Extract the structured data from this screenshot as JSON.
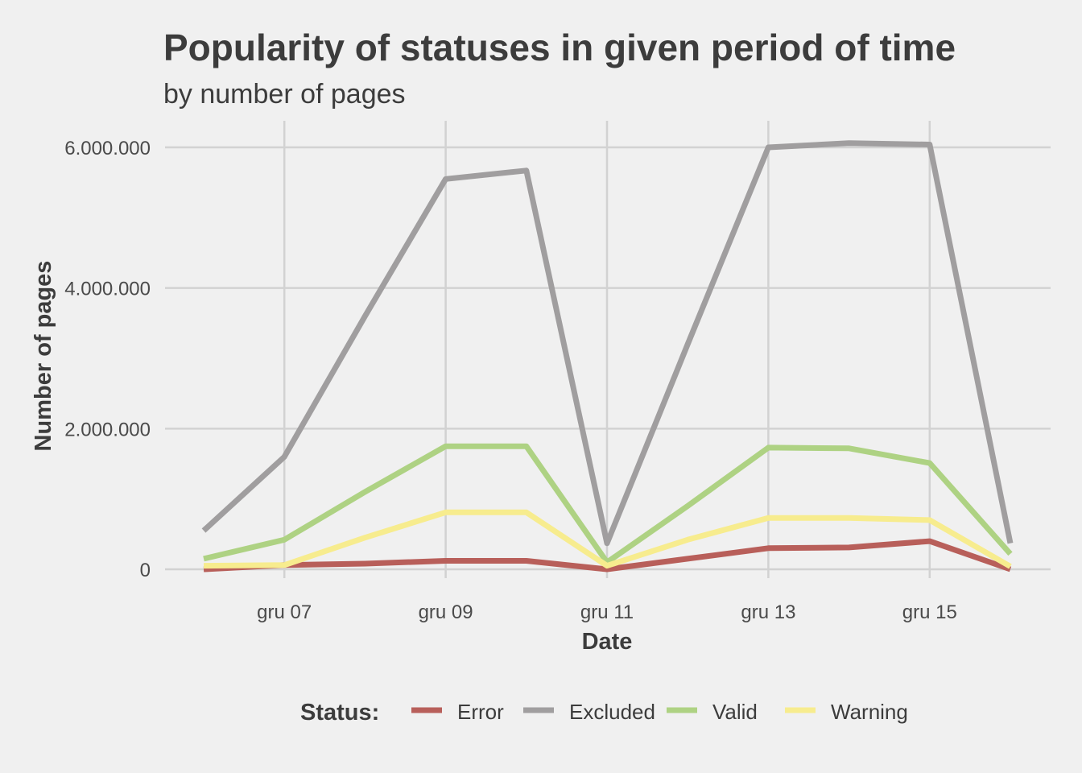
{
  "chart_data": {
    "type": "line",
    "title": "Popularity of statuses in given period of time",
    "subtitle": "by number of pages",
    "xlabel": "Date",
    "ylabel": "Number of pages",
    "x": [
      "gru 06",
      "gru 07",
      "gru 08",
      "gru 09",
      "gru 10",
      "gru 11",
      "gru 12",
      "gru 13",
      "gru 14",
      "gru 15",
      "gru 16"
    ],
    "x_ticks": [
      "gru 07",
      "gru 09",
      "gru 11",
      "gru 13",
      "gru 15"
    ],
    "y_ticks": [
      0,
      2000000,
      4000000,
      6000000
    ],
    "y_tick_labels": [
      "0",
      "2.000.000",
      "4.000.000",
      "6.000.000"
    ],
    "ylim": [
      0,
      6400000
    ],
    "grid": true,
    "legend": {
      "title": "Status:",
      "position": "bottom"
    },
    "series": [
      {
        "name": "Error",
        "color": "#b85f5a",
        "values": [
          0,
          60000,
          80000,
          120000,
          120000,
          0,
          150000,
          300000,
          310000,
          400000,
          0
        ]
      },
      {
        "name": "Excluded",
        "color": "#a09e9f",
        "values": [
          550000,
          1600000,
          3600000,
          5550000,
          5670000,
          370000,
          3200000,
          6000000,
          6060000,
          6040000,
          370000
        ]
      },
      {
        "name": "Valid",
        "color": "#aed283",
        "values": [
          150000,
          420000,
          1100000,
          1750000,
          1750000,
          100000,
          900000,
          1730000,
          1720000,
          1510000,
          220000
        ]
      },
      {
        "name": "Warning",
        "color": "#f7ec8e",
        "values": [
          50000,
          60000,
          450000,
          810000,
          810000,
          50000,
          420000,
          730000,
          730000,
          700000,
          40000
        ]
      }
    ]
  }
}
